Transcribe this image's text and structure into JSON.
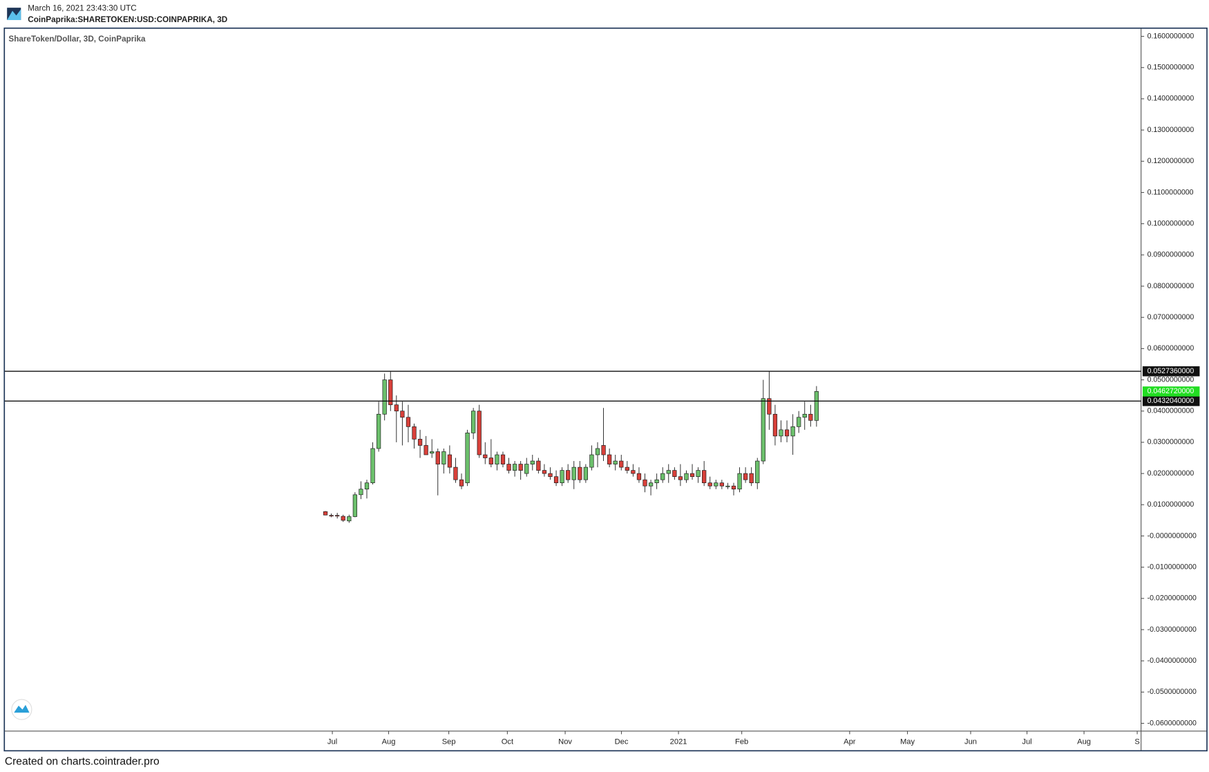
{
  "header": {
    "timestamp": "March 16, 2021 23:43:30 UTC",
    "symbol": "CoinPaprika:SHARETOKEN:USD:COINPAPRIKA, 3D"
  },
  "footer": "Created on charts.cointrader.pro",
  "chart_data": {
    "type": "candlestick",
    "title": "ShareToken/Dollar, 3D, CoinPaprika",
    "x": [
      0,
      1,
      2,
      3,
      4,
      5,
      6,
      7,
      8,
      9,
      10,
      11,
      12,
      13,
      14,
      15,
      16,
      17,
      18,
      19,
      20,
      21,
      22,
      23,
      24,
      25,
      26,
      27,
      28,
      29,
      30,
      31,
      32,
      33,
      34,
      35,
      36,
      37,
      38,
      39,
      40,
      41,
      42,
      43,
      44,
      45,
      46,
      47,
      48,
      49,
      50,
      51,
      52,
      53,
      54,
      55,
      56,
      57,
      58,
      59,
      60,
      61,
      62,
      63,
      64,
      65,
      66,
      67,
      68,
      69,
      70,
      71,
      72,
      73,
      74,
      75,
      76,
      77,
      78,
      79,
      80,
      81,
      82,
      83
    ],
    "open": [
      0.0078,
      0.0066,
      0.0066,
      0.0063,
      0.0048,
      0.0062,
      0.0132,
      0.015,
      0.017,
      0.028,
      0.039,
      0.05,
      0.042,
      0.04,
      0.038,
      0.035,
      0.031,
      0.029,
      0.0265,
      0.027,
      0.023,
      0.026,
      0.022,
      0.018,
      0.017,
      0.033,
      0.04,
      0.026,
      0.025,
      0.023,
      0.026,
      0.023,
      0.021,
      0.023,
      0.02,
      0.023,
      0.024,
      0.021,
      0.02,
      0.019,
      0.017,
      0.021,
      0.018,
      0.022,
      0.018,
      0.022,
      0.026,
      0.029,
      0.026,
      0.023,
      0.024,
      0.022,
      0.021,
      0.02,
      0.018,
      0.016,
      0.017,
      0.018,
      0.02,
      0.021,
      0.019,
      0.018,
      0.02,
      0.019,
      0.021,
      0.017,
      0.016,
      0.017,
      0.016,
      0.016,
      0.015,
      0.02,
      0.02,
      0.017,
      0.024,
      0.044,
      0.039,
      0.032,
      0.034,
      0.032,
      0.035,
      0.038,
      0.039,
      0.037
    ],
    "high": [
      0.008,
      0.0072,
      0.0074,
      0.0068,
      0.0068,
      0.014,
      0.0175,
      0.018,
      0.03,
      0.043,
      0.052,
      0.0527,
      0.045,
      0.043,
      0.042,
      0.036,
      0.034,
      0.032,
      0.031,
      0.028,
      0.028,
      0.029,
      0.025,
      0.02,
      0.034,
      0.041,
      0.042,
      0.03,
      0.031,
      0.027,
      0.027,
      0.025,
      0.024,
      0.024,
      0.025,
      0.026,
      0.025,
      0.023,
      0.022,
      0.021,
      0.022,
      0.023,
      0.024,
      0.024,
      0.023,
      0.029,
      0.03,
      0.041,
      0.028,
      0.026,
      0.026,
      0.024,
      0.023,
      0.022,
      0.02,
      0.018,
      0.02,
      0.022,
      0.023,
      0.022,
      0.023,
      0.021,
      0.023,
      0.022,
      0.024,
      0.019,
      0.018,
      0.018,
      0.017,
      0.017,
      0.022,
      0.022,
      0.022,
      0.025,
      0.05,
      0.0527,
      0.042,
      0.037,
      0.037,
      0.039,
      0.04,
      0.043,
      0.042,
      0.048
    ],
    "low": [
      0.0066,
      0.006,
      0.0056,
      0.0045,
      0.0042,
      0.006,
      0.0118,
      0.012,
      0.0165,
      0.027,
      0.037,
      0.04,
      0.03,
      0.029,
      0.03,
      0.028,
      0.025,
      0.026,
      0.025,
      0.013,
      0.02,
      0.02,
      0.017,
      0.015,
      0.016,
      0.031,
      0.025,
      0.023,
      0.022,
      0.021,
      0.022,
      0.02,
      0.019,
      0.018,
      0.019,
      0.021,
      0.02,
      0.019,
      0.018,
      0.016,
      0.016,
      0.017,
      0.015,
      0.017,
      0.017,
      0.021,
      0.022,
      0.024,
      0.022,
      0.021,
      0.021,
      0.02,
      0.019,
      0.017,
      0.014,
      0.013,
      0.015,
      0.017,
      0.017,
      0.018,
      0.016,
      0.017,
      0.018,
      0.017,
      0.016,
      0.015,
      0.015,
      0.015,
      0.015,
      0.013,
      0.014,
      0.017,
      0.016,
      0.015,
      0.023,
      0.034,
      0.029,
      0.03,
      0.03,
      0.026,
      0.033,
      0.034,
      0.035,
      0.035
    ],
    "close": [
      0.0067,
      0.0065,
      0.0064,
      0.005,
      0.0062,
      0.0132,
      0.015,
      0.017,
      0.028,
      0.039,
      0.05,
      0.042,
      0.04,
      0.038,
      0.035,
      0.031,
      0.029,
      0.026,
      0.027,
      0.023,
      0.027,
      0.022,
      0.018,
      0.016,
      0.033,
      0.04,
      0.026,
      0.025,
      0.023,
      0.026,
      0.023,
      0.021,
      0.023,
      0.021,
      0.023,
      0.024,
      0.021,
      0.02,
      0.019,
      0.017,
      0.021,
      0.018,
      0.022,
      0.018,
      0.022,
      0.026,
      0.028,
      0.026,
      0.023,
      0.024,
      0.022,
      0.021,
      0.02,
      0.018,
      0.016,
      0.017,
      0.018,
      0.02,
      0.021,
      0.019,
      0.018,
      0.02,
      0.019,
      0.021,
      0.017,
      0.016,
      0.017,
      0.016,
      0.016,
      0.015,
      0.02,
      0.018,
      0.017,
      0.024,
      0.044,
      0.039,
      0.032,
      0.034,
      0.032,
      0.035,
      0.038,
      0.039,
      0.037,
      0.046272
    ],
    "up_color": "#6cc06c",
    "down_color": "#d8403a",
    "outline_color": "#1a1a1a",
    "xlim": [
      -54.2,
      137.85
    ],
    "xticks": [
      {
        "value": 1.17,
        "label": "Jul"
      },
      {
        "value": 10.68,
        "label": "Aug"
      },
      {
        "value": 20.85,
        "label": "Sep"
      },
      {
        "value": 30.75,
        "label": "Oct"
      },
      {
        "value": 40.52,
        "label": "Nov"
      },
      {
        "value": 50.03,
        "label": "Dec"
      },
      {
        "value": 59.67,
        "label": "2021"
      },
      {
        "value": 70.36,
        "label": "Feb"
      },
      {
        "value": 88.6,
        "label": "Apr"
      },
      {
        "value": 98.37,
        "label": "May"
      },
      {
        "value": 109.05,
        "label": "Jun"
      },
      {
        "value": 118.57,
        "label": "Jul"
      },
      {
        "value": 128.21,
        "label": "Aug"
      },
      {
        "value": 137.2,
        "label": "S"
      }
    ],
    "ylim": [
      -0.0625,
      0.1625
    ],
    "yticks": [
      {
        "value": 0.16,
        "label": "0.1600000000"
      },
      {
        "value": 0.15,
        "label": "0.1500000000"
      },
      {
        "value": 0.14,
        "label": "0.1400000000"
      },
      {
        "value": 0.13,
        "label": "0.1300000000"
      },
      {
        "value": 0.12,
        "label": "0.1200000000"
      },
      {
        "value": 0.11,
        "label": "0.1100000000"
      },
      {
        "value": 0.1,
        "label": "0.1000000000"
      },
      {
        "value": 0.09,
        "label": "0.0900000000"
      },
      {
        "value": 0.08,
        "label": "0.0800000000"
      },
      {
        "value": 0.07,
        "label": "0.0700000000"
      },
      {
        "value": 0.06,
        "label": "0.0600000000"
      },
      {
        "value": 0.05,
        "label": "0.0500000000"
      },
      {
        "value": 0.04,
        "label": "0.0400000000"
      },
      {
        "value": 0.03,
        "label": "0.0300000000"
      },
      {
        "value": 0.02,
        "label": "0.0200000000"
      },
      {
        "value": 0.01,
        "label": "0.0100000000"
      },
      {
        "value": 0,
        "label": "-0.0000000000"
      },
      {
        "value": -0.01,
        "label": "-0.0100000000"
      },
      {
        "value": -0.02,
        "label": "-0.0200000000"
      },
      {
        "value": -0.03,
        "label": "-0.0300000000"
      },
      {
        "value": -0.04,
        "label": "-0.0400000000"
      },
      {
        "value": -0.05,
        "label": "-0.0500000000"
      },
      {
        "value": -0.06,
        "label": "-0.0600000000"
      }
    ],
    "levels": [
      {
        "value": 0.052736,
        "label": "0.0527360000"
      },
      {
        "value": 0.043204,
        "label": "0.0432040000"
      }
    ],
    "level_color": "#111111",
    "last": {
      "value": 0.046272,
      "label": "0.0462720000"
    },
    "last_color": "#22dd22"
  }
}
